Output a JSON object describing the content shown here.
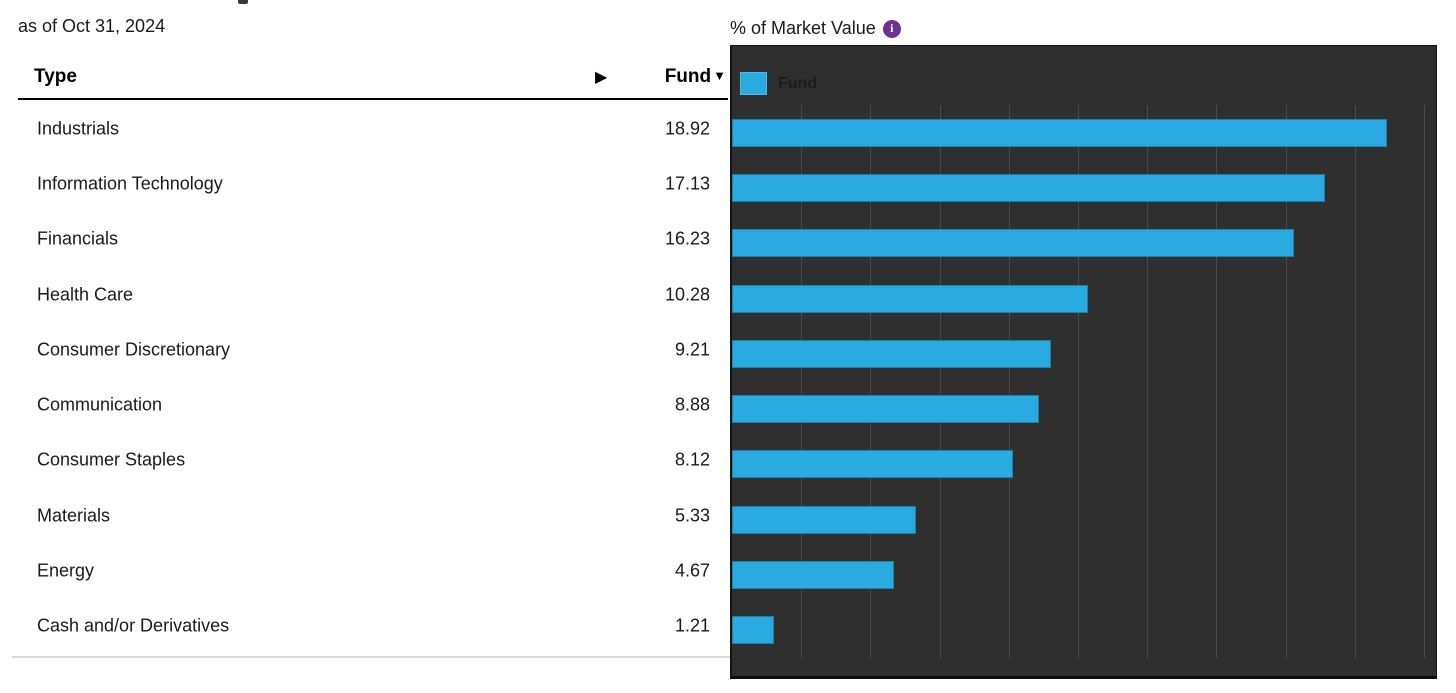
{
  "subtitle": "as of Oct 31, 2024",
  "table": {
    "header": {
      "type_label": "Type",
      "fund_label": "Fund",
      "sort_icon": "▼",
      "scroll_icon": "▶"
    },
    "rows": [
      {
        "type": "Industrials",
        "fund": "18.92"
      },
      {
        "type": "Information Technology",
        "fund": "17.13"
      },
      {
        "type": "Financials",
        "fund": "16.23"
      },
      {
        "type": "Health Care",
        "fund": "10.28"
      },
      {
        "type": "Consumer Discretionary",
        "fund": "9.21"
      },
      {
        "type": "Communication",
        "fund": "8.88"
      },
      {
        "type": "Consumer Staples",
        "fund": "8.12"
      },
      {
        "type": "Materials",
        "fund": "5.33"
      },
      {
        "type": "Energy",
        "fund": "4.67"
      },
      {
        "type": "Cash and/or Derivatives",
        "fund": "1.21"
      }
    ]
  },
  "chart_header": {
    "title": "% of Market Value",
    "info_icon": "i"
  },
  "chart_data": {
    "type": "bar",
    "orientation": "horizontal",
    "title": "% of Market Value",
    "categories": [
      "Industrials",
      "Information Technology",
      "Financials",
      "Health Care",
      "Consumer Discretionary",
      "Communication",
      "Consumer Staples",
      "Materials",
      "Energy",
      "Cash and/or Derivatives"
    ],
    "series": [
      {
        "name": "Fund",
        "values": [
          18.92,
          17.13,
          16.23,
          10.28,
          9.21,
          8.88,
          8.12,
          5.33,
          4.67,
          1.21
        ]
      }
    ],
    "xlabel": "",
    "ylabel": "",
    "xlim": [
      0,
      20.4
    ],
    "gridline_step": 2,
    "grid": true,
    "legend_position": "top-left",
    "colors": {
      "bar": "#29abe2",
      "chart_background": "#2f2f2f",
      "gridline": "#4a4a4a",
      "legend_text": "#1c1c1c",
      "info_icon_background": "#6e3190"
    }
  }
}
